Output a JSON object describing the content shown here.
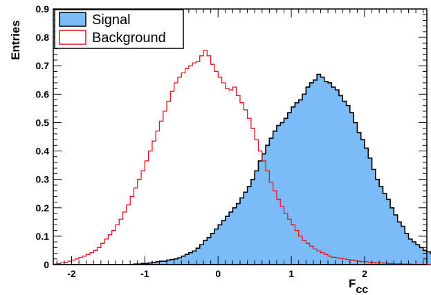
{
  "chart_data": {
    "type": "histogram",
    "xlabel": "F",
    "xlabel_sub": "cc",
    "ylabel": "Entries",
    "xlim": [
      -2.25,
      2.85
    ],
    "ylim": [
      0,
      0.9
    ],
    "x_ticks": [
      -2,
      -1,
      0,
      1,
      2
    ],
    "y_ticks": [
      0,
      0.1,
      0.2,
      0.3,
      0.4,
      0.5,
      0.6,
      0.7,
      0.8,
      0.9
    ],
    "y_tick_labels": [
      "0",
      "0.1",
      "0.2",
      "0.3",
      "0.4",
      "0.5",
      "0.6",
      "0.7",
      "0.8",
      "0.9"
    ],
    "x_tick_labels": [
      "-2",
      "-1",
      "0",
      "1",
      "2"
    ],
    "grid": false,
    "legend_position": "top-left",
    "bin_edges_start": -2.25,
    "bin_width": 0.05,
    "series": [
      {
        "name": "Signal",
        "fill": "#7bbcf7",
        "stroke": "#000000",
        "values": [
          0,
          0,
          0,
          0,
          0,
          0,
          0,
          0,
          0,
          0,
          0,
          0,
          0,
          0,
          0,
          0,
          0,
          0,
          0,
          0,
          0,
          0,
          0.002,
          0.002,
          0.004,
          0.004,
          0.006,
          0.008,
          0.01,
          0.012,
          0.012,
          0.016,
          0.018,
          0.02,
          0.024,
          0.03,
          0.036,
          0.042,
          0.048,
          0.058,
          0.07,
          0.085,
          0.095,
          0.11,
          0.125,
          0.14,
          0.155,
          0.17,
          0.185,
          0.2,
          0.215,
          0.235,
          0.255,
          0.275,
          0.3,
          0.33,
          0.365,
          0.39,
          0.42,
          0.445,
          0.47,
          0.49,
          0.5,
          0.515,
          0.535,
          0.555,
          0.57,
          0.58,
          0.6,
          0.625,
          0.64,
          0.65,
          0.67,
          0.66,
          0.645,
          0.64,
          0.625,
          0.615,
          0.595,
          0.575,
          0.56,
          0.535,
          0.5,
          0.465,
          0.44,
          0.41,
          0.375,
          0.335,
          0.3,
          0.275,
          0.25,
          0.23,
          0.2,
          0.175,
          0.15,
          0.135,
          0.11,
          0.09,
          0.08,
          0.07,
          0.06,
          0.05,
          0.045,
          0.038,
          0.03,
          0.025,
          0.02,
          0.015,
          0.012,
          0.01,
          0.008,
          0.006,
          0.004,
          0.003,
          0.002,
          0.002,
          0.002,
          0,
          0,
          0,
          0,
          0
        ]
      },
      {
        "name": "Background",
        "fill": "none",
        "stroke": "#e8131a",
        "values": [
          0.002,
          0.004,
          0.006,
          0.008,
          0.012,
          0.016,
          0.02,
          0.025,
          0.03,
          0.036,
          0.042,
          0.05,
          0.06,
          0.075,
          0.09,
          0.105,
          0.12,
          0.14,
          0.16,
          0.185,
          0.21,
          0.24,
          0.27,
          0.3,
          0.33,
          0.365,
          0.4,
          0.435,
          0.47,
          0.505,
          0.54,
          0.575,
          0.61,
          0.64,
          0.66,
          0.675,
          0.69,
          0.7,
          0.71,
          0.715,
          0.735,
          0.755,
          0.735,
          0.705,
          0.68,
          0.66,
          0.64,
          0.62,
          0.615,
          0.625,
          0.595,
          0.57,
          0.545,
          0.515,
          0.48,
          0.44,
          0.4,
          0.365,
          0.33,
          0.29,
          0.26,
          0.23,
          0.205,
          0.18,
          0.16,
          0.14,
          0.12,
          0.1,
          0.085,
          0.075,
          0.065,
          0.055,
          0.048,
          0.042,
          0.036,
          0.03,
          0.026,
          0.024,
          0.022,
          0.02,
          0.018,
          0.016,
          0.014,
          0.012,
          0.01,
          0.01,
          0.008,
          0.008,
          0.006,
          0.006,
          0.005,
          0.004,
          0.004,
          0.003,
          0.003,
          0.002,
          0.002,
          0.002,
          0.001,
          0.001,
          0.001,
          0.001,
          0,
          0,
          0,
          0,
          0,
          0,
          0,
          0,
          0,
          0,
          0,
          0,
          0,
          0,
          0,
          0,
          0,
          0,
          0,
          0
        ]
      }
    ]
  }
}
